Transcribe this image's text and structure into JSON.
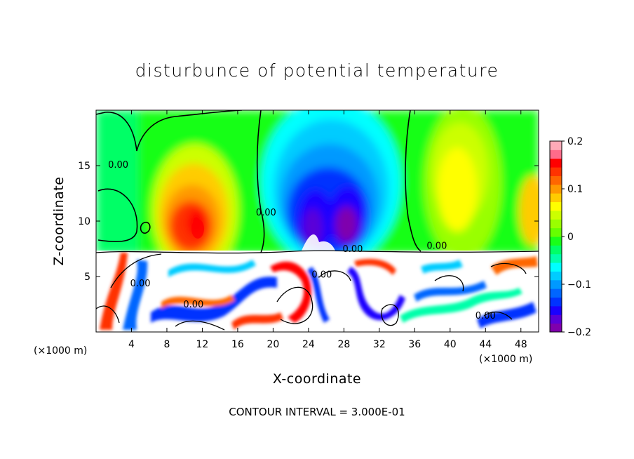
{
  "title": "disturbunce of potential temperature",
  "contour_interval_text": "CONTOUR INTERVAL = 3.000E-01",
  "chart_data": {
    "type": "heatmap",
    "title": "disturbunce of potential temperature",
    "xlabel": "X-coordinate",
    "ylabel": "Z-coordinate",
    "x_unit": "(×1000 m)",
    "y_unit": "(×1000 m)",
    "xlim": [
      0,
      50
    ],
    "ylim": [
      0,
      20
    ],
    "x_ticks": [
      4,
      8,
      12,
      16,
      20,
      24,
      28,
      32,
      36,
      40,
      44,
      48
    ],
    "y_ticks": [
      5,
      10,
      15
    ],
    "colorbar": {
      "range": [
        -0.2,
        0.2
      ],
      "tick_values": [
        0.2,
        0.1,
        0,
        -0.1,
        -0.2
      ],
      "tick_labels": [
        "0.2",
        "0.1",
        "0",
        "−0.1",
        "−0.2"
      ],
      "colors": [
        "#7f00ad",
        "#5a00d8",
        "#1a00ff",
        "#0033ff",
        "#0066ff",
        "#0099ff",
        "#00ccff",
        "#00ffff",
        "#00ffaa",
        "#00ff66",
        "#19ff19",
        "#66ff00",
        "#99ff00",
        "#ccff00",
        "#ffff00",
        "#ffcc00",
        "#ff9900",
        "#ff6600",
        "#ff3300",
        "#ff0000",
        "#ff6b8a",
        "#ffaab8"
      ]
    },
    "contour_labels": [
      {
        "text": "0.00",
        "x": 2.5,
        "y": 14.8
      },
      {
        "text": "0.00",
        "x": 19.2,
        "y": 10.5
      },
      {
        "text": "0.00",
        "x": 29,
        "y": 7.2
      },
      {
        "text": "0.00",
        "x": 38.5,
        "y": 7.5
      },
      {
        "text": "0.00",
        "x": 5,
        "y": 4.1
      },
      {
        "text": "0.00",
        "x": 11,
        "y": 2.2
      },
      {
        "text": "0.00",
        "x": 25.5,
        "y": 4.9
      },
      {
        "text": "0.00",
        "x": 44,
        "y": 1.2
      }
    ],
    "fields": {
      "upper_zero_lines": "contours at 0.00 near x≈18.5 and x≈35",
      "features": [
        {
          "label": "warm anomaly",
          "x": 11.5,
          "z": 10,
          "value": 0.17
        },
        {
          "label": "cold anomaly",
          "x": 24.5,
          "z": 10.5,
          "value": -0.2
        },
        {
          "label": "cold anomaly",
          "x": 29,
          "z": 10,
          "value": -0.2
        },
        {
          "label": "warm anomaly",
          "x": 40.5,
          "z": 12,
          "value": 0.06
        },
        {
          "label": "boundary layer interface",
          "z": 7.3
        }
      ]
    }
  }
}
